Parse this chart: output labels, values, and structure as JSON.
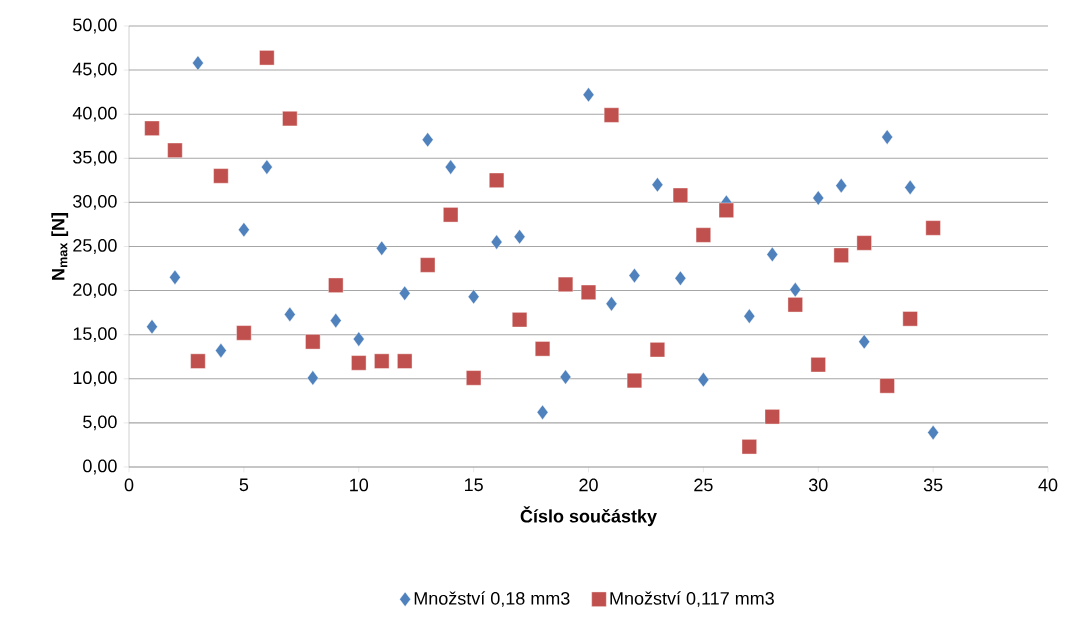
{
  "chart_data": {
    "type": "scatter",
    "xlabel": "Číslo součástky",
    "ylabel": "N$_{max}$ [N]",
    "x": [
      1,
      2,
      3,
      4,
      5,
      6,
      7,
      8,
      9,
      10,
      11,
      12,
      13,
      14,
      15,
      16,
      17,
      18,
      19,
      20,
      21,
      22,
      23,
      24,
      25,
      26,
      27,
      28,
      29,
      30,
      31,
      32,
      33,
      34,
      35
    ],
    "series": [
      {
        "name": "Množství 0,18 mm3",
        "color": "#4f81bd",
        "marker": "diamond",
        "values": [
          15.9,
          21.5,
          45.8,
          13.2,
          26.9,
          34.0,
          17.3,
          10.1,
          16.6,
          14.5,
          24.8,
          19.7,
          37.1,
          34.0,
          19.3,
          25.5,
          26.1,
          6.2,
          10.2,
          42.2,
          18.5,
          21.7,
          32.0,
          21.4,
          9.9,
          30.0,
          17.1,
          24.1,
          20.1,
          30.5,
          31.9,
          14.2,
          37.4,
          31.7,
          3.9
        ]
      },
      {
        "name": "Množství 0,117 mm3",
        "color": "#c0504d",
        "marker": "square",
        "values": [
          38.4,
          35.9,
          12.0,
          33.0,
          15.2,
          46.4,
          39.5,
          14.2,
          20.6,
          11.8,
          12.0,
          12.0,
          22.9,
          28.6,
          10.1,
          32.5,
          16.7,
          13.4,
          20.7,
          19.8,
          39.9,
          9.8,
          13.3,
          30.8,
          26.3,
          29.1,
          2.3,
          5.7,
          18.4,
          11.6,
          24.0,
          25.4,
          9.2,
          16.8,
          27.1
        ]
      }
    ],
    "xlim": [
      0,
      40
    ],
    "xticks": [
      0,
      5,
      10,
      15,
      20,
      25,
      30,
      35,
      40
    ],
    "ylim": [
      0,
      50
    ],
    "yticks": [
      {
        "value": 0,
        "label": "0,00"
      },
      {
        "value": 5,
        "label": "5,00"
      },
      {
        "value": 10,
        "label": "10,00"
      },
      {
        "value": 15,
        "label": "15,00"
      },
      {
        "value": 20,
        "label": "20,00"
      },
      {
        "value": 25,
        "label": "25,00"
      },
      {
        "value": 30,
        "label": "30,00"
      },
      {
        "value": 35,
        "label": "35,00"
      },
      {
        "value": 40,
        "label": "40,00"
      },
      {
        "value": 45,
        "label": "45,00"
      },
      {
        "value": 50,
        "label": "50,00"
      }
    ],
    "grid": "y",
    "legend": "bottom"
  }
}
